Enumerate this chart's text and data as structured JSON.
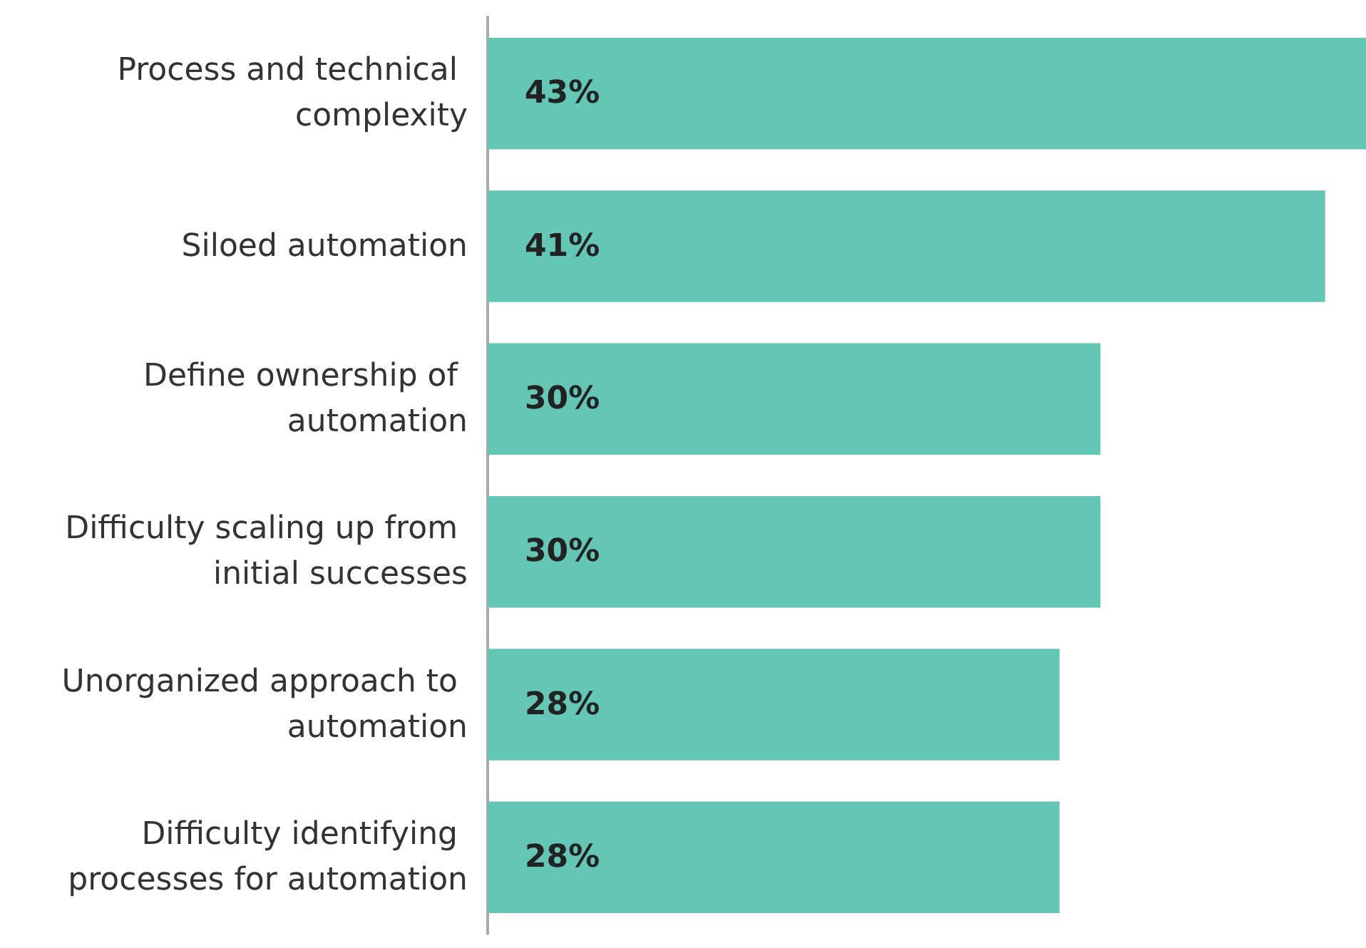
{
  "chart_data": {
    "type": "bar",
    "orientation": "horizontal",
    "categories": [
      "Process and technical complexity",
      "Siloed automation",
      "Define ownership of automation",
      "Difficulty scaling up from initial successes",
      "Unorganized approach to automation",
      "Difficulty identifying processes for automation"
    ],
    "values": [
      43,
      41,
      30,
      30,
      28,
      28
    ],
    "value_labels": [
      "43%",
      "41%",
      "30%",
      "30%",
      "28%",
      "28%"
    ],
    "color": "#64c6b4"
  }
}
